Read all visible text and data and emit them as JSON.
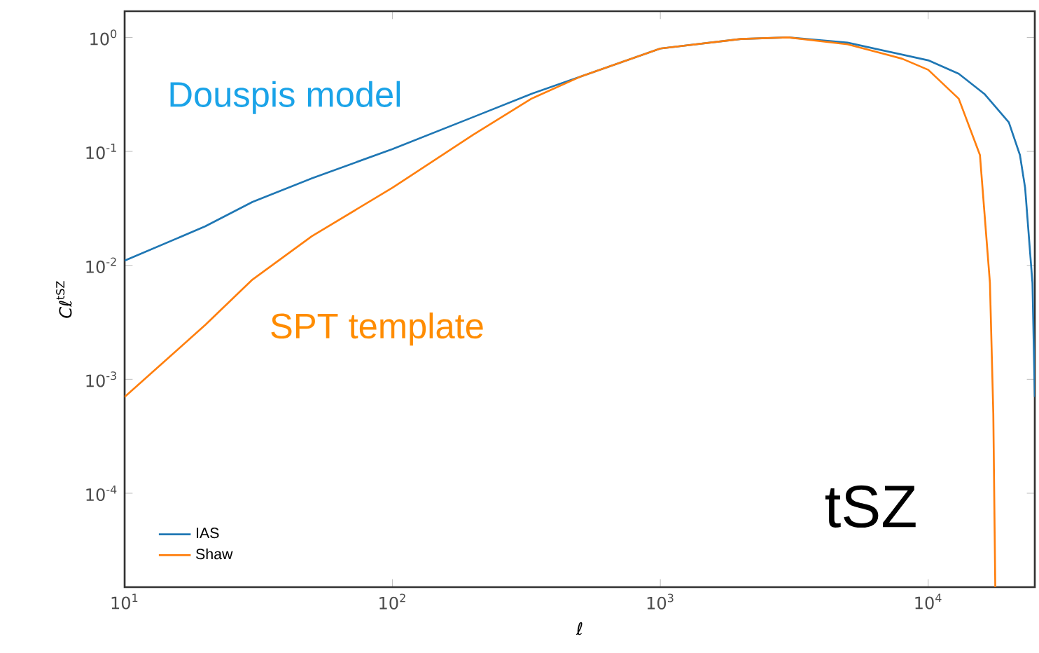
{
  "chart_data": {
    "type": "line",
    "xlabel": "*ℓ*",
    "ylabel": "*Cℓ*$^{tSZ}$",
    "log": "xy",
    "grid": false,
    "legend": "bottom left",
    "xlim": [
      10,
      25000
    ],
    "ylim": [
      1.5e-05,
      1.7
    ],
    "xticks": [
      {
        "value": 10,
        "label": "10$^{1}$"
      },
      {
        "value": 100,
        "label": "10$^{2}$"
      },
      {
        "value": 1000,
        "label": "10$^{3}$"
      },
      {
        "value": 10000,
        "label": "10$^{4}$"
      }
    ],
    "yticks": [
      {
        "value": 0.0001,
        "label": "10$^{-4}$"
      },
      {
        "value": 0.001,
        "label": "10$^{-3}$"
      },
      {
        "value": 0.01,
        "label": "10$^{-2}$"
      },
      {
        "value": 0.1,
        "label": "10$^{-1}$"
      },
      {
        "value": 1,
        "label": "10$^{0}$"
      }
    ],
    "annotations": [
      "Douspis model",
      "SPT template",
      "tSZ"
    ],
    "series": [
      {
        "name": "IAS",
        "color": "#1f77b4",
        "x": [
          10,
          20,
          30,
          50,
          100,
          200,
          330,
          500,
          1000,
          2000,
          3000,
          5000,
          10000,
          13000,
          16200,
          20000,
          22000,
          23000,
          24500,
          25000
        ],
        "values": [
          0.011,
          0.022,
          0.036,
          0.058,
          0.105,
          0.2,
          0.32,
          0.45,
          0.8,
          0.97,
          1.0,
          0.9,
          0.63,
          0.48,
          0.32,
          0.18,
          0.093,
          0.048,
          0.007,
          0.0007
        ]
      },
      {
        "name": "Shaw",
        "color": "#ff7f0e",
        "x": [
          10,
          20,
          30,
          50,
          100,
          200,
          330,
          500,
          1000,
          2000,
          3000,
          5000,
          8000,
          10000,
          13000,
          15600,
          17000,
          17500,
          17800
        ],
        "values": [
          0.0007,
          0.003,
          0.0075,
          0.018,
          0.048,
          0.14,
          0.29,
          0.45,
          0.8,
          0.97,
          1.0,
          0.87,
          0.65,
          0.52,
          0.29,
          0.093,
          0.007,
          0.0005,
          1.5e-05
        ]
      }
    ]
  }
}
